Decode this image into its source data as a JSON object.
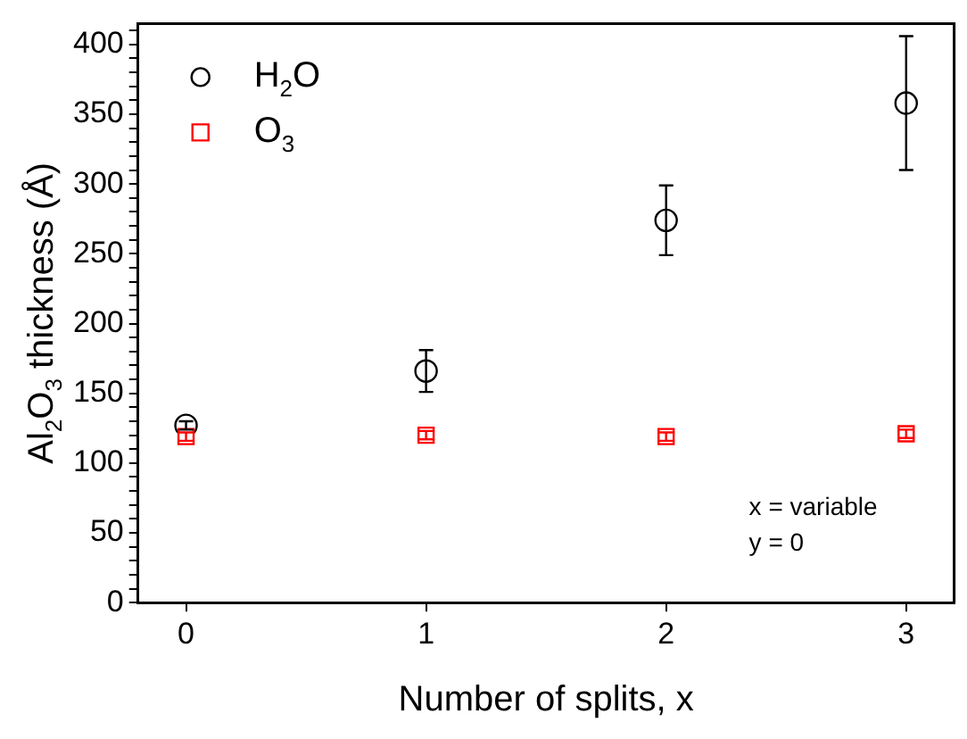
{
  "chart_data": {
    "type": "scatter",
    "xlabel": "Number of splits, x",
    "ylabel": "Al$_{2}$O$_{3}$ thickness (Å)",
    "x": [
      0,
      1,
      2,
      3
    ],
    "series": [
      {
        "name": "H$_{2}$O",
        "color": "#000000",
        "marker": "circle",
        "values": [
          127,
          166,
          274,
          358
        ],
        "errors": [
          3,
          15,
          25,
          48
        ]
      },
      {
        "name": "O$_{3}$",
        "color": "#ff0000",
        "marker": "square",
        "values": [
          119,
          120,
          119,
          121
        ],
        "errors": [
          3,
          3,
          3,
          3
        ]
      }
    ],
    "xlim": [
      -0.2,
      3.2
    ],
    "xticks": [
      0,
      1,
      2,
      3
    ],
    "ylim": [
      0,
      415
    ],
    "yticks": [
      0,
      {
        "value": 10,
        "label": null
      },
      {
        "value": 20,
        "label": null
      },
      {
        "value": 30,
        "label": null
      },
      {
        "value": 40,
        "label": null
      },
      50,
      {
        "value": 60,
        "label": null
      },
      {
        "value": 70,
        "label": null
      },
      {
        "value": 80,
        "label": null
      },
      {
        "value": 90,
        "label": null
      },
      100,
      {
        "value": 110,
        "label": null
      },
      {
        "value": 120,
        "label": null
      },
      {
        "value": 130,
        "label": null
      },
      {
        "value": 140,
        "label": null
      },
      150,
      {
        "value": 160,
        "label": null
      },
      {
        "value": 170,
        "label": null
      },
      {
        "value": 180,
        "label": null
      },
      {
        "value": 190,
        "label": null
      },
      200,
      {
        "value": 210,
        "label": null
      },
      {
        "value": 220,
        "label": null
      },
      {
        "value": 230,
        "label": null
      },
      {
        "value": 240,
        "label": null
      },
      250,
      {
        "value": 260,
        "label": null
      },
      {
        "value": 270,
        "label": null
      },
      {
        "value": 280,
        "label": null
      },
      {
        "value": 290,
        "label": null
      },
      300,
      {
        "value": 310,
        "label": null
      },
      {
        "value": 320,
        "label": null
      },
      {
        "value": 330,
        "label": null
      },
      {
        "value": 340,
        "label": null
      },
      350,
      {
        "value": 360,
        "label": null
      },
      {
        "value": 370,
        "label": null
      },
      {
        "value": 380,
        "label": null
      },
      {
        "value": 390,
        "label": null
      },
      400,
      {
        "value": 410,
        "label": null
      }
    ],
    "annotations": [
      "x = variable",
      "y = 0"
    ],
    "grid": false,
    "legend": "top left"
  }
}
